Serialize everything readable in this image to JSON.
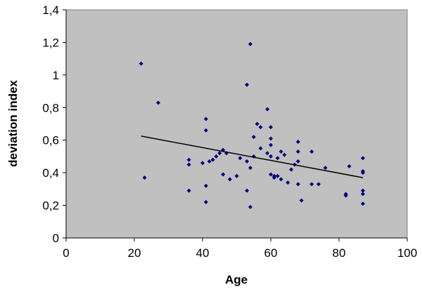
{
  "chart_data": {
    "type": "scatter",
    "title": "",
    "xlabel": "Age",
    "ylabel": "deviation index",
    "xlim": [
      0,
      100
    ],
    "ylim": [
      0,
      1.4
    ],
    "x_ticks": [
      0,
      20,
      40,
      60,
      80,
      100
    ],
    "y_ticks": [
      0,
      0.2,
      0.4,
      0.6,
      0.8,
      1.0,
      1.2,
      1.4
    ],
    "x_tick_labels": [
      "0",
      "20",
      "40",
      "60",
      "80",
      "100"
    ],
    "y_tick_labels": [
      "0",
      "0,2",
      "0,4",
      "0,6",
      "0,8",
      "1",
      "1,2",
      "1,4"
    ],
    "grid": false,
    "legend": "none",
    "colors": {
      "plot_background": "#c0c0c0",
      "marker": "#000080",
      "trendline": "#000000"
    },
    "points": [
      {
        "x": 22,
        "y": 1.07
      },
      {
        "x": 23,
        "y": 0.37
      },
      {
        "x": 27,
        "y": 0.83
      },
      {
        "x": 36,
        "y": 0.48
      },
      {
        "x": 36,
        "y": 0.45
      },
      {
        "x": 36,
        "y": 0.29
      },
      {
        "x": 40,
        "y": 0.46
      },
      {
        "x": 41,
        "y": 0.73
      },
      {
        "x": 41,
        "y": 0.66
      },
      {
        "x": 41,
        "y": 0.32
      },
      {
        "x": 41,
        "y": 0.22
      },
      {
        "x": 42,
        "y": 0.47
      },
      {
        "x": 43,
        "y": 0.48
      },
      {
        "x": 44,
        "y": 0.5
      },
      {
        "x": 45,
        "y": 0.52
      },
      {
        "x": 46,
        "y": 0.54
      },
      {
        "x": 46,
        "y": 0.39
      },
      {
        "x": 47,
        "y": 0.52
      },
      {
        "x": 48,
        "y": 0.36
      },
      {
        "x": 50,
        "y": 0.38
      },
      {
        "x": 51,
        "y": 0.49
      },
      {
        "x": 53,
        "y": 0.94
      },
      {
        "x": 53,
        "y": 0.47
      },
      {
        "x": 53,
        "y": 0.29
      },
      {
        "x": 54,
        "y": 1.19
      },
      {
        "x": 54,
        "y": 0.43
      },
      {
        "x": 54,
        "y": 0.19
      },
      {
        "x": 55,
        "y": 0.62
      },
      {
        "x": 55,
        "y": 0.5
      },
      {
        "x": 56,
        "y": 0.7
      },
      {
        "x": 57,
        "y": 0.68
      },
      {
        "x": 57,
        "y": 0.55
      },
      {
        "x": 59,
        "y": 0.79
      },
      {
        "x": 59,
        "y": 0.52
      },
      {
        "x": 60,
        "y": 0.68
      },
      {
        "x": 60,
        "y": 0.61
      },
      {
        "x": 60,
        "y": 0.57
      },
      {
        "x": 60,
        "y": 0.5
      },
      {
        "x": 60,
        "y": 0.39
      },
      {
        "x": 61,
        "y": 0.38
      },
      {
        "x": 61,
        "y": 0.37
      },
      {
        "x": 62,
        "y": 0.49
      },
      {
        "x": 62,
        "y": 0.38
      },
      {
        "x": 63,
        "y": 0.53
      },
      {
        "x": 63,
        "y": 0.36
      },
      {
        "x": 64,
        "y": 0.51
      },
      {
        "x": 65,
        "y": 0.34
      },
      {
        "x": 66,
        "y": 0.42
      },
      {
        "x": 67,
        "y": 0.45
      },
      {
        "x": 68,
        "y": 0.59
      },
      {
        "x": 68,
        "y": 0.53
      },
      {
        "x": 68,
        "y": 0.47
      },
      {
        "x": 68,
        "y": 0.33
      },
      {
        "x": 69,
        "y": 0.23
      },
      {
        "x": 72,
        "y": 0.53
      },
      {
        "x": 72,
        "y": 0.33
      },
      {
        "x": 74,
        "y": 0.33
      },
      {
        "x": 76,
        "y": 0.43
      },
      {
        "x": 82,
        "y": 0.27
      },
      {
        "x": 82,
        "y": 0.26
      },
      {
        "x": 83,
        "y": 0.44
      },
      {
        "x": 87,
        "y": 0.49
      },
      {
        "x": 87,
        "y": 0.41
      },
      {
        "x": 87,
        "y": 0.4
      },
      {
        "x": 87,
        "y": 0.29
      },
      {
        "x": 87,
        "y": 0.27
      },
      {
        "x": 87,
        "y": 0.21
      }
    ],
    "trendline": {
      "type": "linear",
      "x_start": 22,
      "y_start": 0.625,
      "x_end": 87,
      "y_end": 0.37
    }
  }
}
